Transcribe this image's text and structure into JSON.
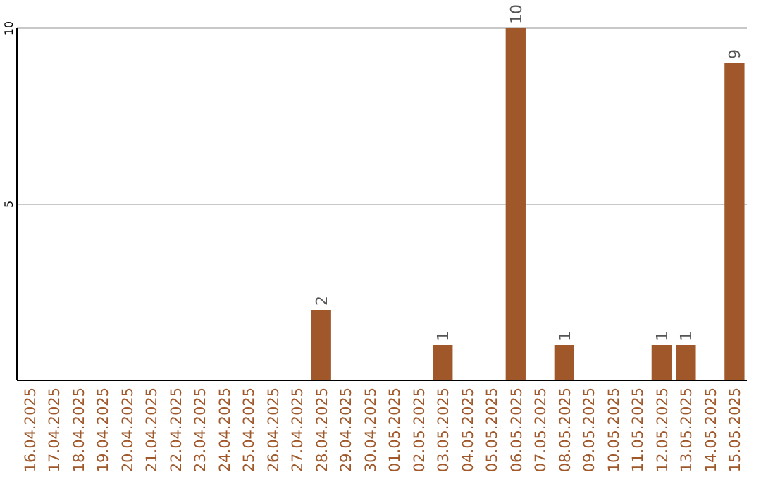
{
  "chart_data": {
    "type": "bar",
    "categories": [
      "16.04.2025",
      "17.04.2025",
      "18.04.2025",
      "19.04.2025",
      "20.04.2025",
      "21.04.2025",
      "22.04.2025",
      "23.04.2025",
      "24.04.2025",
      "25.04.2025",
      "26.04.2025",
      "27.04.2025",
      "28.04.2025",
      "29.04.2025",
      "30.04.2025",
      "01.05.2025",
      "02.05.2025",
      "03.05.2025",
      "04.05.2025",
      "05.05.2025",
      "06.05.2025",
      "07.05.2025",
      "08.05.2025",
      "09.05.2025",
      "10.05.2025",
      "11.05.2025",
      "12.05.2025",
      "13.05.2025",
      "14.05.2025",
      "15.05.2025"
    ],
    "values": [
      0,
      0,
      0,
      0,
      0,
      0,
      0,
      0,
      0,
      0,
      0,
      0,
      2,
      0,
      0,
      0,
      0,
      1,
      0,
      0,
      10,
      0,
      1,
      0,
      0,
      0,
      1,
      1,
      0,
      9
    ],
    "value_labels": [
      null,
      null,
      null,
      null,
      null,
      null,
      null,
      null,
      null,
      null,
      null,
      null,
      "2",
      null,
      null,
      null,
      null,
      "1",
      null,
      null,
      "10",
      null,
      "1",
      null,
      null,
      null,
      "1",
      "1",
      null,
      "9"
    ],
    "color": "#a0582a",
    "ylim": [
      0,
      10
    ],
    "yticks": [
      5,
      10
    ],
    "grid": "y"
  }
}
